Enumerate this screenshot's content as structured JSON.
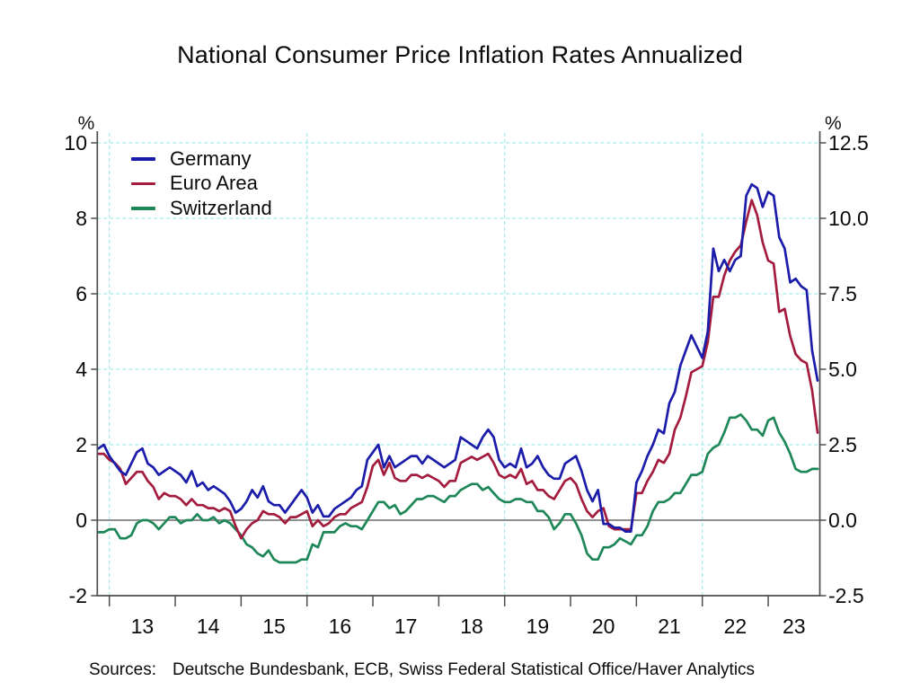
{
  "chart_data": {
    "type": "line",
    "title": "National Consumer Price Inflation Rates Annualized",
    "frequency": "monthly",
    "start_period": "2012-11",
    "end_period": "2023-10",
    "grid": true,
    "grid_color": "#a5ebeb",
    "zero_line_color": "#808080",
    "axis_color": "#4d4d4d",
    "left_axis": {
      "unit": "%",
      "range": [
        -2,
        10
      ],
      "tick_values": [
        10,
        8,
        6,
        4,
        2,
        0,
        -2
      ],
      "tick_labels": [
        "10",
        "8",
        "6",
        "4",
        "2",
        "0",
        "-2"
      ],
      "grid_values": [
        10,
        8,
        6,
        4,
        2
      ],
      "applies_to": "Germany"
    },
    "right_axis": {
      "unit": "%",
      "range": [
        -2.5,
        12.5
      ],
      "tick_values": [
        12.5,
        10.0,
        7.5,
        5.0,
        2.5,
        0.0,
        -2.5
      ],
      "tick_labels": [
        "12.5",
        "10.0",
        "7.5",
        "5.0",
        "2.5",
        "0.0",
        "-2.5"
      ],
      "applies_to": "Euro Area and Switzerland"
    },
    "x_axis": {
      "tick_years": [
        2013,
        2014,
        2015,
        2016,
        2017,
        2018,
        2019,
        2020,
        2021,
        2022,
        2023
      ],
      "labels": [
        "13",
        "14",
        "15",
        "16",
        "17",
        "18",
        "19",
        "20",
        "21",
        "22",
        "23"
      ],
      "gridline_years": [
        2013,
        2016,
        2019,
        2022
      ]
    },
    "series": [
      {
        "name": "Germany",
        "axis": "left",
        "color": "#1c1caa",
        "values": [
          1.9,
          2.0,
          1.7,
          1.5,
          1.3,
          1.2,
          1.5,
          1.8,
          1.9,
          1.5,
          1.4,
          1.2,
          1.3,
          1.4,
          1.3,
          1.2,
          1.0,
          1.3,
          0.9,
          1.0,
          0.8,
          0.9,
          0.8,
          0.7,
          0.5,
          0.2,
          0.3,
          0.5,
          0.8,
          0.6,
          0.9,
          0.5,
          0.4,
          0.4,
          0.2,
          0.4,
          0.6,
          0.8,
          0.6,
          0.2,
          0.4,
          0.1,
          0.1,
          0.3,
          0.4,
          0.5,
          0.6,
          0.8,
          0.9,
          1.6,
          1.8,
          2.0,
          1.4,
          1.7,
          1.4,
          1.5,
          1.6,
          1.7,
          1.7,
          1.5,
          1.7,
          1.6,
          1.5,
          1.4,
          1.5,
          1.6,
          2.2,
          2.1,
          2.0,
          1.9,
          2.2,
          2.4,
          2.2,
          1.6,
          1.4,
          1.5,
          1.4,
          1.9,
          1.4,
          1.5,
          1.7,
          1.4,
          1.2,
          1.1,
          1.1,
          1.5,
          1.6,
          1.7,
          1.3,
          0.8,
          0.5,
          0.8,
          -0.1,
          -0.1,
          -0.2,
          -0.2,
          -0.3,
          -0.3,
          1.0,
          1.3,
          1.7,
          2.0,
          2.4,
          2.3,
          3.1,
          3.4,
          4.1,
          4.5,
          4.9,
          4.6,
          4.3,
          5.0,
          7.2,
          6.6,
          6.9,
          6.6,
          6.9,
          7.0,
          8.6,
          8.9,
          8.8,
          8.3,
          8.7,
          8.6,
          7.5,
          7.2,
          6.3,
          6.4,
          6.2,
          6.1,
          4.5,
          3.7
        ]
      },
      {
        "name": "Euro Area",
        "axis": "right",
        "color": "#a31c3e",
        "values": [
          2.2,
          2.2,
          2.0,
          1.9,
          1.7,
          1.2,
          1.4,
          1.6,
          1.6,
          1.3,
          1.1,
          0.7,
          0.9,
          0.8,
          0.8,
          0.7,
          0.5,
          0.7,
          0.5,
          0.5,
          0.4,
          0.4,
          0.3,
          0.4,
          0.3,
          -0.2,
          -0.6,
          -0.3,
          -0.1,
          0.0,
          0.3,
          0.2,
          0.2,
          0.1,
          -0.1,
          0.1,
          0.1,
          0.2,
          0.3,
          -0.2,
          0.0,
          -0.2,
          -0.1,
          0.1,
          0.2,
          0.2,
          0.4,
          0.5,
          0.6,
          1.1,
          1.8,
          2.0,
          1.5,
          1.9,
          1.4,
          1.3,
          1.3,
          1.5,
          1.5,
          1.4,
          1.5,
          1.4,
          1.3,
          1.1,
          1.3,
          1.3,
          1.9,
          2.0,
          2.1,
          2.0,
          2.1,
          2.2,
          1.9,
          1.5,
          1.4,
          1.5,
          1.4,
          1.7,
          1.2,
          1.3,
          1.0,
          1.0,
          0.8,
          0.7,
          1.0,
          1.3,
          1.4,
          1.2,
          0.7,
          0.3,
          0.1,
          0.3,
          0.4,
          -0.2,
          -0.3,
          -0.3,
          -0.3,
          -0.3,
          0.9,
          0.9,
          1.3,
          1.6,
          2.0,
          1.9,
          2.2,
          3.0,
          3.4,
          4.1,
          4.9,
          5.0,
          5.1,
          5.9,
          7.4,
          7.4,
          8.1,
          8.6,
          8.9,
          9.1,
          9.9,
          10.6,
          10.1,
          9.2,
          8.6,
          8.5,
          6.9,
          7.0,
          6.1,
          5.5,
          5.3,
          5.2,
          4.3,
          2.9
        ]
      },
      {
        "name": "Switzerland",
        "axis": "right",
        "color": "#1e8758",
        "values": [
          -0.4,
          -0.4,
          -0.3,
          -0.3,
          -0.6,
          -0.6,
          -0.5,
          -0.1,
          0.0,
          0.0,
          -0.1,
          -0.3,
          -0.1,
          0.1,
          0.1,
          -0.1,
          0.0,
          0.0,
          0.2,
          0.0,
          0.0,
          0.1,
          -0.1,
          0.0,
          -0.1,
          -0.3,
          -0.5,
          -0.8,
          -0.9,
          -1.1,
          -1.2,
          -1.0,
          -1.3,
          -1.4,
          -1.4,
          -1.4,
          -1.4,
          -1.3,
          -1.3,
          -0.8,
          -0.9,
          -0.4,
          -0.4,
          -0.4,
          -0.2,
          -0.1,
          -0.2,
          -0.2,
          -0.3,
          0.0,
          0.3,
          0.6,
          0.6,
          0.4,
          0.5,
          0.2,
          0.3,
          0.5,
          0.7,
          0.7,
          0.8,
          0.8,
          0.7,
          0.6,
          0.8,
          0.8,
          1.0,
          1.1,
          1.2,
          1.2,
          1.0,
          1.1,
          0.9,
          0.7,
          0.6,
          0.6,
          0.7,
          0.7,
          0.6,
          0.6,
          0.3,
          0.3,
          0.1,
          -0.3,
          -0.1,
          0.2,
          0.2,
          -0.1,
          -0.5,
          -1.1,
          -1.3,
          -1.3,
          -0.9,
          -0.9,
          -0.8,
          -0.6,
          -0.7,
          -0.8,
          -0.5,
          -0.5,
          -0.2,
          0.3,
          0.6,
          0.6,
          0.7,
          0.9,
          0.9,
          1.2,
          1.5,
          1.5,
          1.6,
          2.2,
          2.4,
          2.5,
          2.9,
          3.4,
          3.4,
          3.5,
          3.3,
          3.0,
          3.0,
          2.8,
          3.3,
          3.4,
          2.9,
          2.6,
          2.2,
          1.7,
          1.6,
          1.6,
          1.7,
          1.7
        ]
      }
    ],
    "sources": "Deutsche Bundesbank, ECB, Swiss Federal Statistical Office/Haver Analytics"
  },
  "footer": {
    "sources_label": "Sources:",
    "sources_text": "Deutsche Bundesbank, ECB, Swiss Federal Statistical Office/Haver Analytics"
  }
}
